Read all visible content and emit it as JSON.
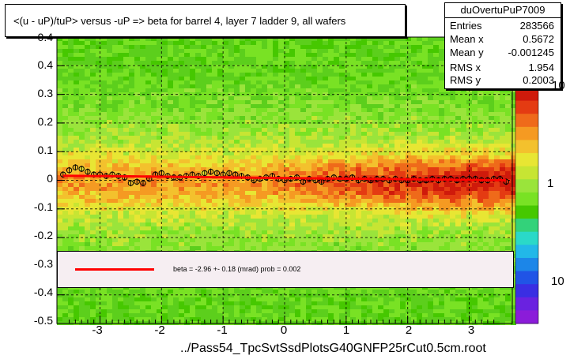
{
  "title": "<(u - uP)/tuP> versus  -uP => beta for barrel 4, layer 7 ladder 9, all wafers",
  "stats": {
    "name": "duOvertuPuP7009",
    "rows": [
      {
        "key": "Entries",
        "value": "283566"
      },
      {
        "key": "Mean x",
        "value": "0.5672"
      },
      {
        "key": "Mean y",
        "value": "-0.001245"
      },
      {
        "key": "RMS x",
        "value": "1.954"
      },
      {
        "key": "RMS y",
        "value": "0.2003"
      }
    ]
  },
  "fit": {
    "line_color": "#ff0000",
    "text": "beta =    -2.96 +-   0.18 (mrad) prob = 0.002"
  },
  "xlabel": "../Pass54_TpcSvtSsdPlotsG40GNFP25rCut0.5cm.root",
  "chart_data": {
    "type": "heatmap",
    "title": "<(u - uP)/tuP> versus  -uP => beta for barrel 4, layer 7 ladder 9, all wafers",
    "xlabel": "../Pass54_TpcSvtSsdPlotsG40GNFP25rCut0.5cm.root",
    "ylabel": "",
    "xlim": [
      -3.7,
      3.7
    ],
    "ylim": [
      -0.5,
      0.5
    ],
    "x_ticks": [
      "-3",
      "-2",
      "-1",
      "0",
      "1",
      "2",
      "3"
    ],
    "y_ticks": [
      "-0.5",
      "-0.4",
      "-0.3",
      "-0.2",
      "-0.1",
      "0",
      "0.1",
      "0.2",
      "0.3",
      "0.4"
    ],
    "z_ticks": [
      "10",
      "1",
      "10"
    ],
    "z_scale": "log",
    "grid": true,
    "profile_points": {
      "x": [
        -3.6,
        -3.5,
        -3.4,
        -3.3,
        -3.2,
        -3.1,
        -3.0,
        -2.9,
        -2.8,
        -2.7,
        -2.6,
        -2.5,
        -2.4,
        -2.3,
        -2.2,
        -2.1,
        -2.0,
        -1.9,
        -1.8,
        -1.7,
        -1.6,
        -1.5,
        -1.4,
        -1.3,
        -1.2,
        -1.1,
        -1.0,
        -0.9,
        -0.8,
        -0.7,
        -0.6,
        -0.5,
        -0.4,
        -0.3,
        -0.2,
        -0.1,
        0.0,
        0.1,
        0.2,
        0.3,
        0.4,
        0.5,
        0.6,
        0.7,
        0.8,
        0.9,
        1.0,
        1.1,
        1.2,
        1.3,
        1.4,
        1.5,
        1.6,
        1.7,
        1.8,
        1.9,
        2.0,
        2.1,
        2.2,
        2.3,
        2.4,
        2.5,
        2.6,
        2.7,
        2.8,
        2.9,
        3.0,
        3.1,
        3.2,
        3.3,
        3.4,
        3.5,
        3.6
      ],
      "y": [
        0.02,
        0.035,
        0.045,
        0.04,
        0.03,
        0.02,
        0.02,
        0.015,
        0.02,
        0.015,
        0.01,
        -0.01,
        -0.005,
        -0.01,
        0.005,
        0.02,
        0.025,
        0.015,
        0.01,
        0.01,
        0.015,
        0.02,
        0.015,
        0.025,
        0.03,
        0.025,
        0.02,
        0.025,
        0.02,
        0.015,
        0.01,
        0.0,
        0.005,
        0.01,
        0.015,
        0.005,
        0.0,
        0.005,
        0.01,
        -0.005,
        0.005,
        0.0,
        -0.005,
        0.005,
        0.01,
        0.005,
        0.005,
        0.01,
        0.0,
        0.005,
        0.0,
        0.005,
        0.005,
        0.0,
        0.005,
        0.0,
        0.0,
        0.005,
        0.0,
        0.0,
        0.005,
        0.0,
        0.005,
        0.005,
        0.0,
        0.005,
        0.005,
        0.005,
        0.0,
        0.0,
        0.005,
        0.005,
        -0.005
      ]
    },
    "fit_line": {
      "x": [
        -3.6,
        3.6
      ],
      "y": [
        0.016,
        0.0
      ]
    }
  }
}
